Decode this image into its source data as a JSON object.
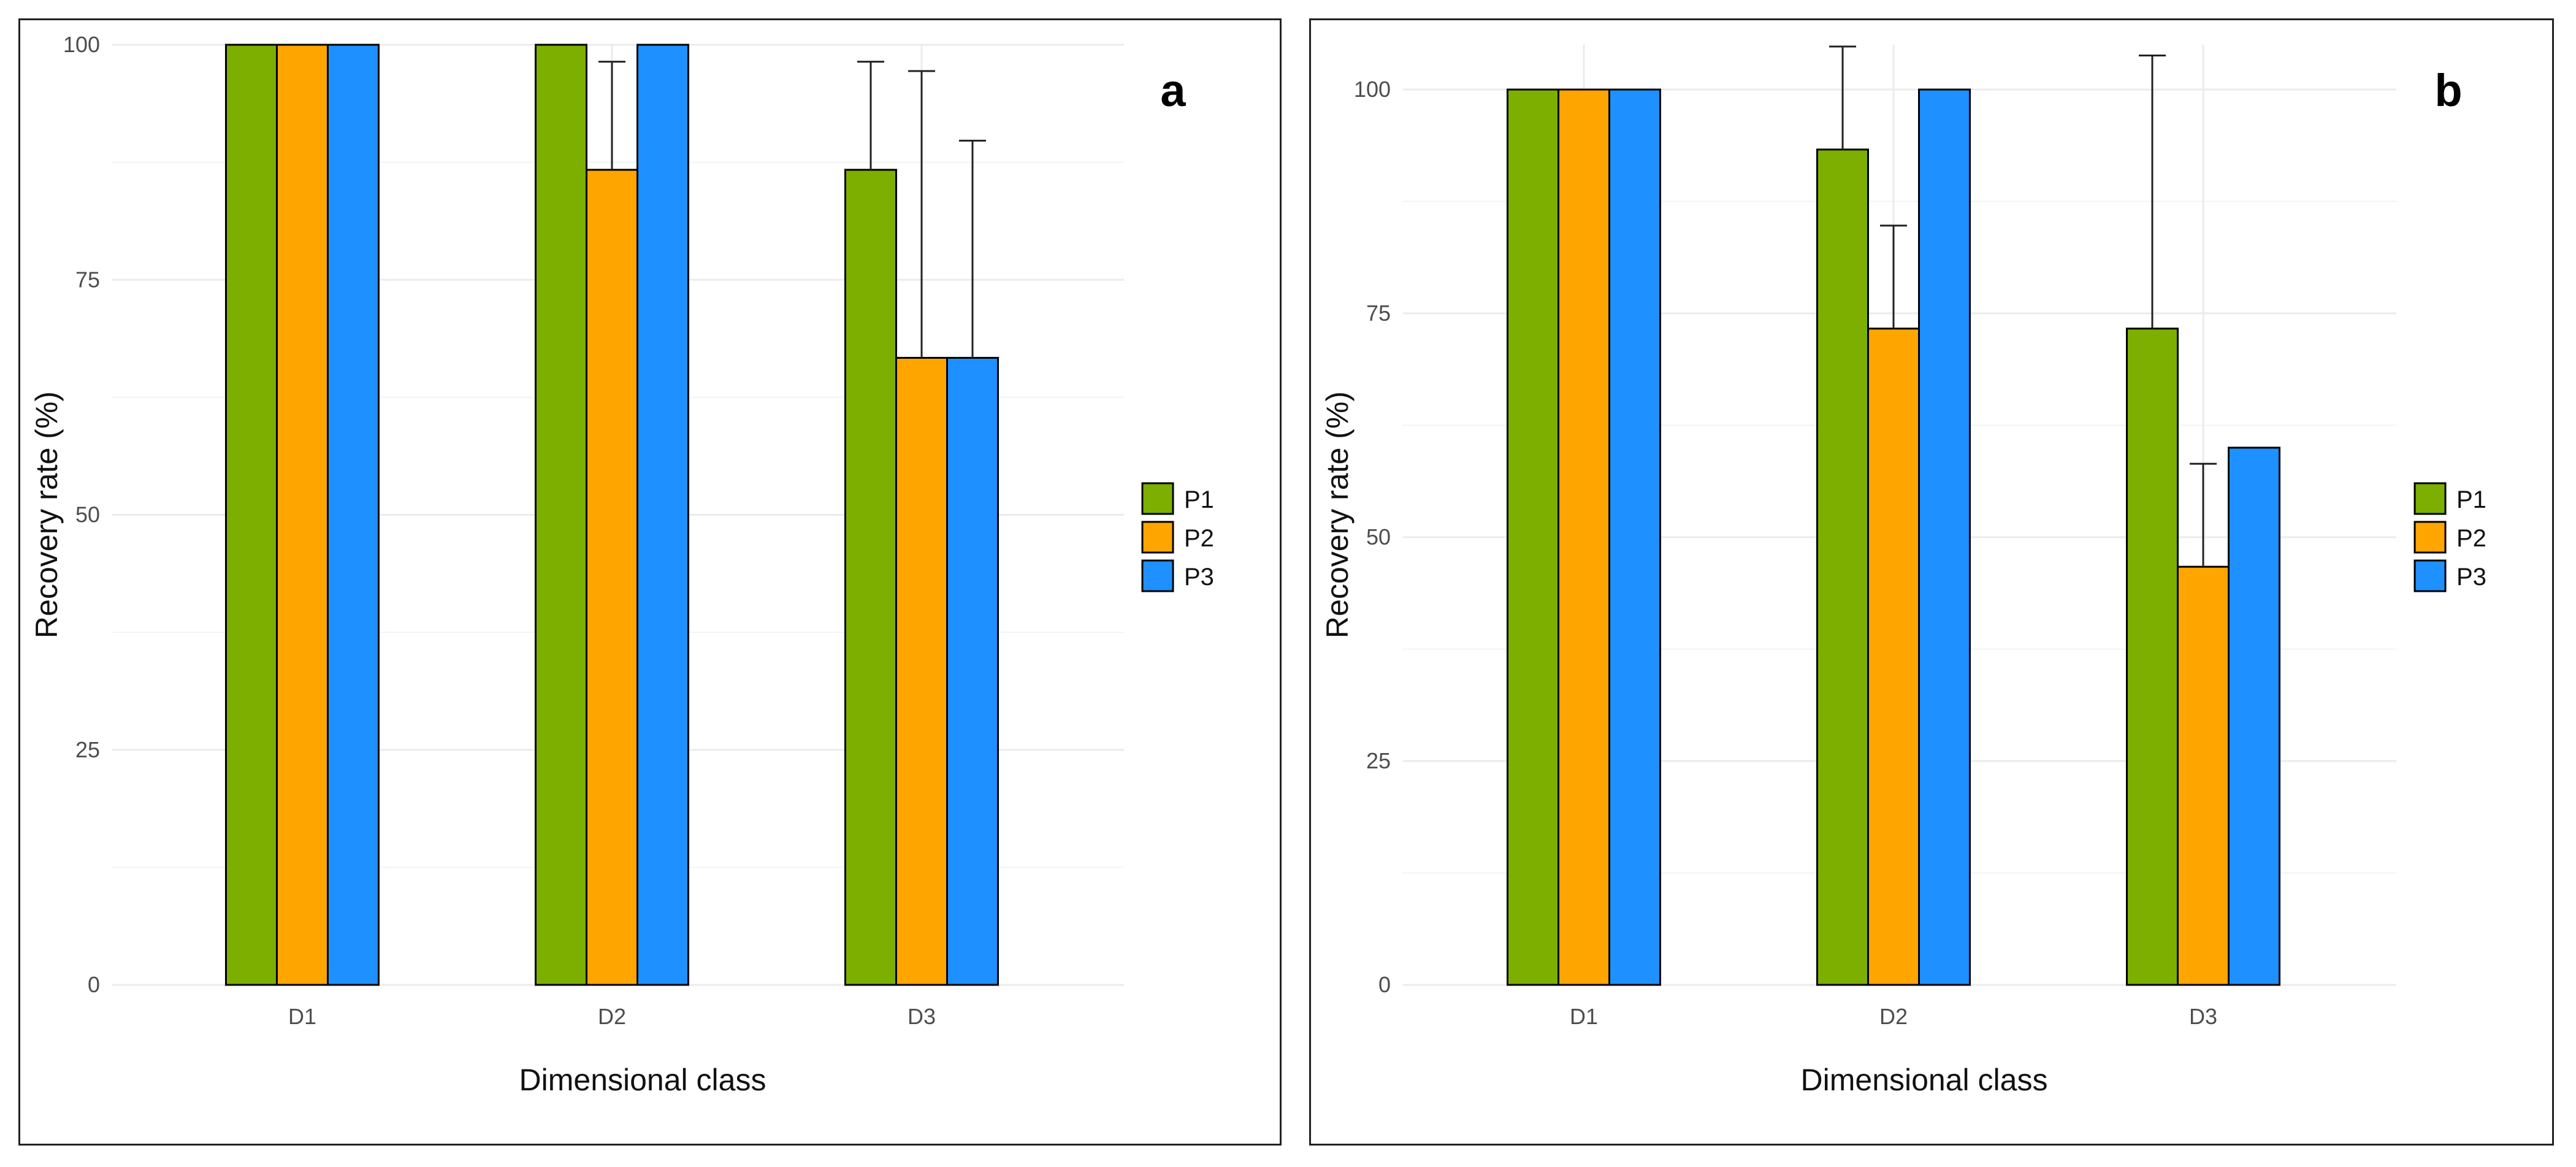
{
  "chart_data": [
    {
      "id": "a",
      "type": "bar",
      "panel_label": "a",
      "title": "",
      "xlabel": "Dimensional class",
      "ylabel": "Recovery rate (%)",
      "categories": [
        "D1",
        "D2",
        "D3"
      ],
      "ylim": [
        0,
        100
      ],
      "yticks": [
        0,
        25,
        50,
        75,
        100
      ],
      "grid": true,
      "legend_position": "right",
      "series": [
        {
          "name": "P1",
          "color": "#7CAF00",
          "values": [
            100,
            100,
            86.7
          ],
          "errors": [
            0,
            0,
            11.5
          ]
        },
        {
          "name": "P2",
          "color": "#FFA500",
          "values": [
            100,
            86.7,
            66.7
          ],
          "errors": [
            0,
            11.5,
            30.5
          ]
        },
        {
          "name": "P3",
          "color": "#1E90FF",
          "values": [
            100,
            100,
            66.7
          ],
          "errors": [
            0,
            0,
            23.1
          ]
        }
      ]
    },
    {
      "id": "b",
      "type": "bar",
      "panel_label": "b",
      "title": "",
      "xlabel": "Dimensional class",
      "ylabel": "Recovery rate (%)",
      "categories": [
        "D1",
        "D2",
        "D3"
      ],
      "ylim": [
        0,
        105
      ],
      "yticks": [
        0,
        25,
        50,
        75,
        100
      ],
      "grid": true,
      "legend_position": "right",
      "series": [
        {
          "name": "P1",
          "color": "#7CAF00",
          "values": [
            100,
            93.3,
            73.3
          ],
          "errors": [
            0,
            11.5,
            30.5
          ]
        },
        {
          "name": "P2",
          "color": "#FFA500",
          "values": [
            100,
            73.3,
            46.7
          ],
          "errors": [
            0,
            11.5,
            11.5
          ]
        },
        {
          "name": "P3",
          "color": "#1E90FF",
          "values": [
            100,
            100,
            60
          ],
          "errors": [
            0,
            0,
            0
          ]
        }
      ]
    }
  ]
}
